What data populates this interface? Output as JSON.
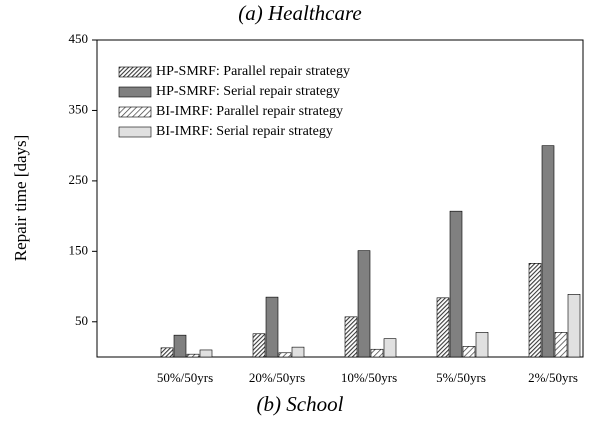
{
  "chart_data": {
    "type": "bar",
    "title": "(a) Healthcare",
    "caption": "(b) School",
    "y_label": "Repair time [days]",
    "categories": [
      "50%/50yrs",
      "20%/50yrs",
      "10%/50yrs",
      "5%/50yrs",
      "2%/50yrs"
    ],
    "series": [
      {
        "name": "HP-SMRF: Parallel repair strategy",
        "color": "#3a3a3a",
        "hatch": "dense",
        "values": [
          13,
          33,
          57,
          84,
          133
        ]
      },
      {
        "name": "HP-SMRF: Serial repair strategy",
        "color": "#808080",
        "hatch": "none",
        "values": [
          31,
          85,
          151,
          207,
          300
        ]
      },
      {
        "name": "BI-IMRF: Parallel repair strategy",
        "color": "#3a3a3a",
        "hatch": "sparse",
        "values": [
          4,
          6,
          11,
          15,
          35
        ]
      },
      {
        "name": "BI-IMRF: Serial repair strategy",
        "color": "#e0e0e0",
        "hatch": "none",
        "values": [
          10,
          14,
          26,
          35,
          89
        ]
      }
    ],
    "ylim": [
      0,
      450
    ],
    "yticks": [
      50,
      150,
      250,
      350,
      450
    ],
    "legend": "upper left"
  }
}
